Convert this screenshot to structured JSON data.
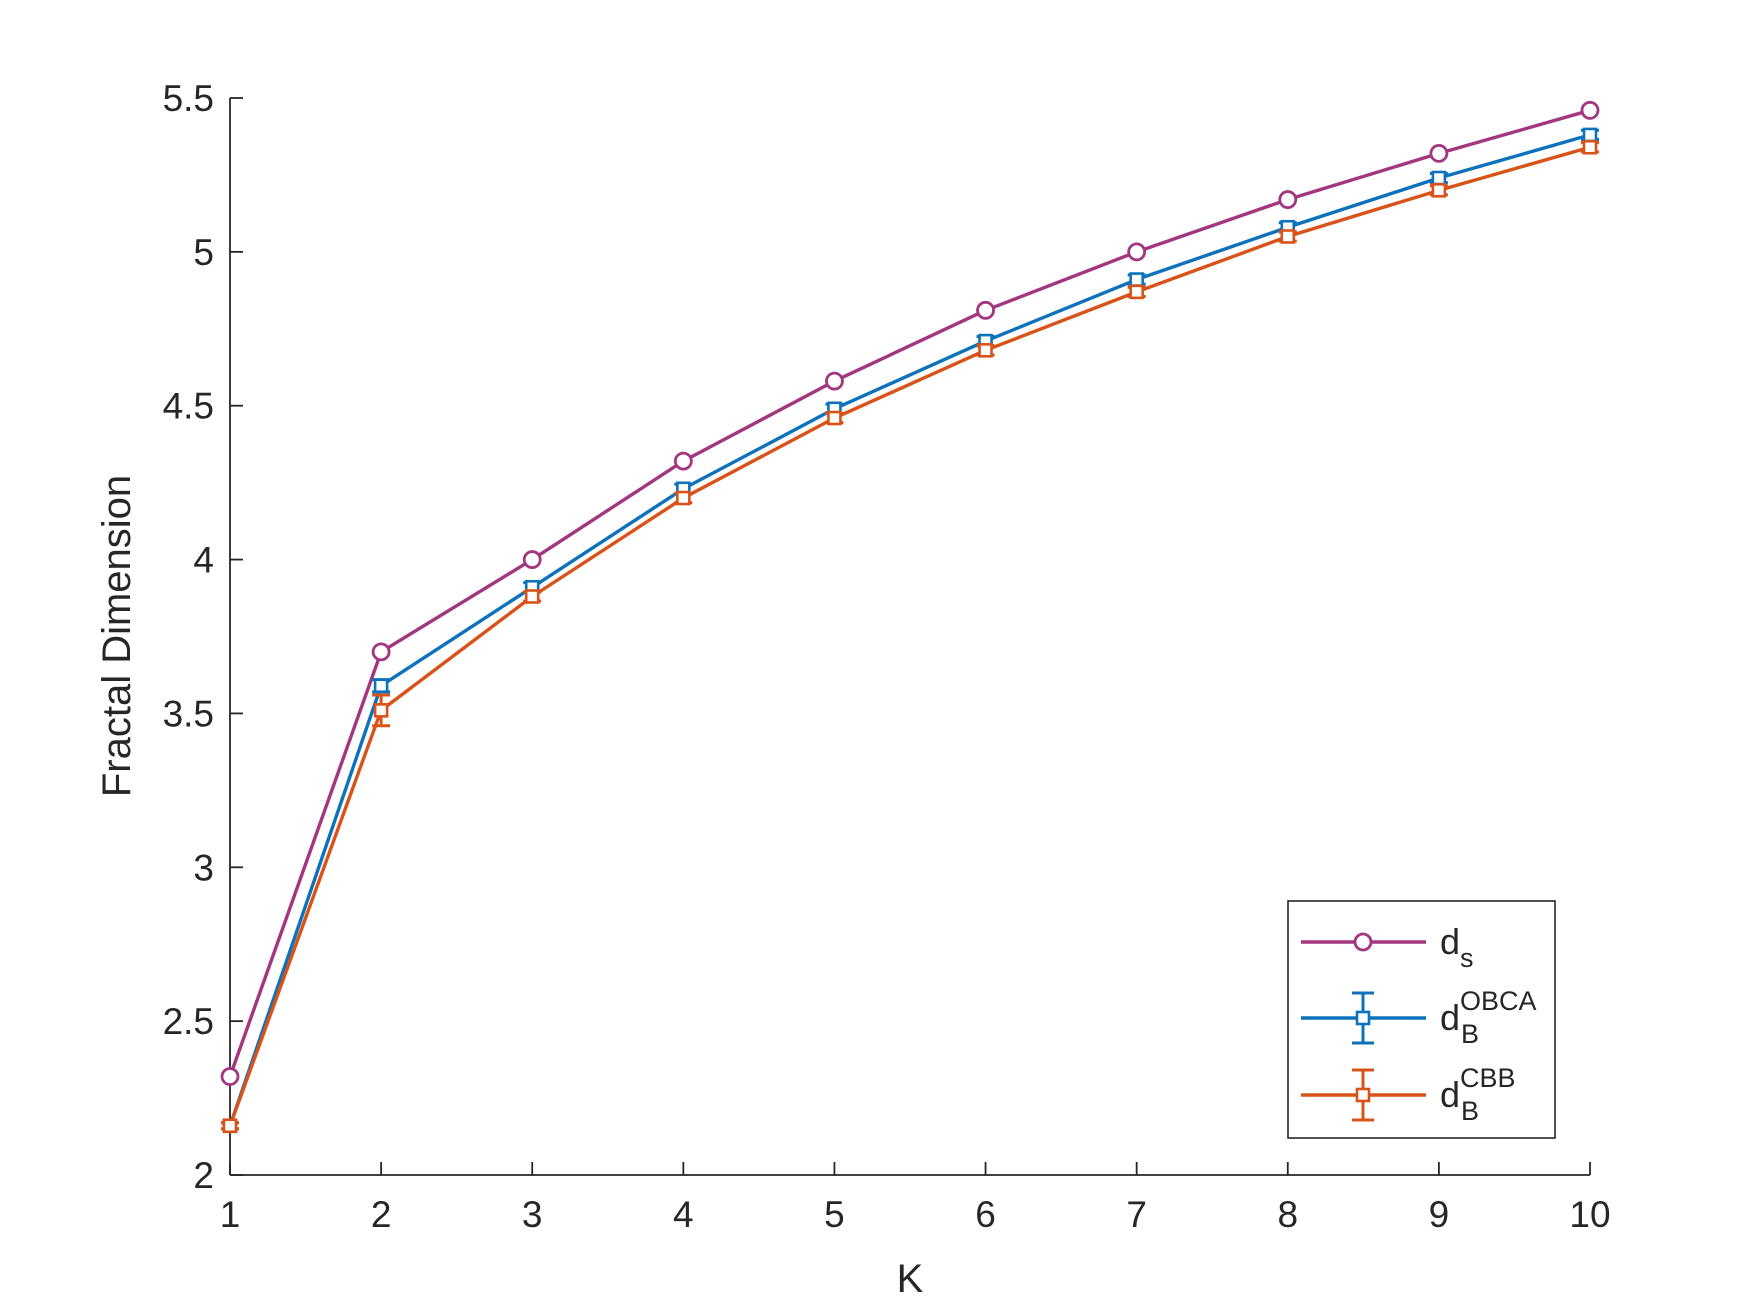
{
  "chart_data": {
    "type": "line",
    "title": "",
    "xlabel": "K",
    "ylabel": "Fractal Dimension",
    "xlim": [
      1,
      10
    ],
    "ylim": [
      2,
      5.5
    ],
    "x_ticks": [
      1,
      2,
      3,
      4,
      5,
      6,
      7,
      8,
      9,
      10
    ],
    "x_tick_labels": [
      "1",
      "2",
      "3",
      "4",
      "5",
      "6",
      "7",
      "8",
      "9",
      "10"
    ],
    "y_ticks": [
      2,
      2.5,
      3,
      3.5,
      4,
      4.5,
      5,
      5.5
    ],
    "y_tick_labels": [
      "2",
      "2.5",
      "3",
      "3.5",
      "4",
      "4.5",
      "5",
      "5.5"
    ],
    "grid": false,
    "legend_position": "bottom-right",
    "x": [
      1,
      2,
      3,
      4,
      5,
      6,
      7,
      8,
      9,
      10
    ],
    "series": [
      {
        "name": "d_s",
        "legend_main": "d",
        "legend_sub": "s",
        "legend_sup": "",
        "color": "#A2367F",
        "marker": "circle",
        "error_bars": false,
        "values": [
          2.32,
          3.7,
          4.0,
          4.32,
          4.58,
          4.81,
          5.0,
          5.17,
          5.32,
          5.46
        ]
      },
      {
        "name": "d_B^OBCA",
        "legend_main": "d",
        "legend_sub": "B",
        "legend_sup": "OBCA",
        "color": "#0C72BC",
        "marker": "square",
        "error_bars": true,
        "values": [
          2.16,
          3.59,
          3.91,
          4.23,
          4.49,
          4.71,
          4.91,
          5.08,
          5.24,
          5.38
        ],
        "errors": [
          0.01,
          0.02,
          0.015,
          0.015,
          0.015,
          0.015,
          0.015,
          0.015,
          0.015,
          0.015
        ]
      },
      {
        "name": "d_B^CBB",
        "legend_main": "d",
        "legend_sub": "B",
        "legend_sup": "CBB",
        "color": "#D95319",
        "marker": "square",
        "error_bars": true,
        "values": [
          2.16,
          3.51,
          3.88,
          4.2,
          4.46,
          4.68,
          4.87,
          5.05,
          5.2,
          5.34
        ],
        "errors": [
          0.01,
          0.05,
          0.015,
          0.015,
          0.015,
          0.015,
          0.015,
          0.015,
          0.015,
          0.015
        ]
      }
    ]
  }
}
